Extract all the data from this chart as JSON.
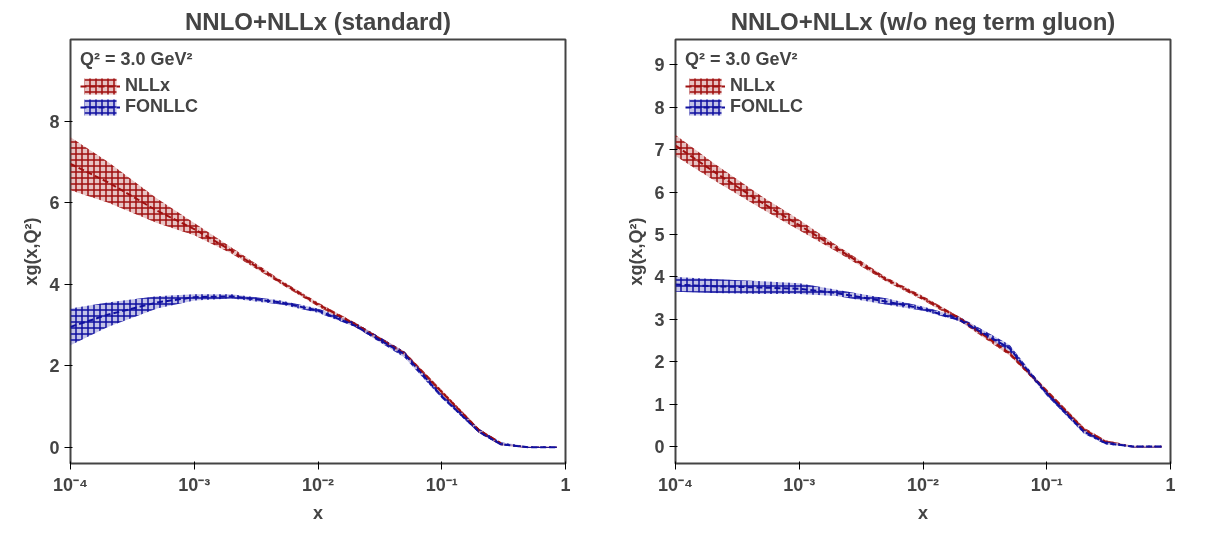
{
  "chart_data": [
    {
      "type": "line",
      "title": "NNLO+NLLx (standard)",
      "xlabel": "x",
      "ylabel": "xg(x,Q²)",
      "legend_title": "Q² = 3.0 GeV²",
      "log": "x",
      "grid": false,
      "legend": "top left",
      "x": [
        0.0001,
        0.0002,
        0.0005,
        0.001,
        0.002,
        0.005,
        0.01,
        0.02,
        0.05,
        0.1,
        0.2,
        0.3,
        0.5,
        0.85
      ],
      "xlim": [
        0.0001,
        1
      ],
      "xticks": [
        {
          "value": 0.0001,
          "label": "10⁻⁴"
        },
        {
          "value": 0.001,
          "label": "10⁻³"
        },
        {
          "value": 0.01,
          "label": "10⁻²"
        },
        {
          "value": 0.1,
          "label": "10⁻¹"
        },
        1
      ],
      "ylim": [
        -0.4,
        10
      ],
      "yticks": [
        0,
        2,
        4,
        6,
        8
      ],
      "series": [
        {
          "name": "NLLx",
          "color": "#a01010",
          "line_style": "dashed",
          "values": [
            6.95,
            6.5,
            5.8,
            5.35,
            4.82,
            4.05,
            3.5,
            3.02,
            2.3,
            1.35,
            0.42,
            0.1,
            null,
            null
          ],
          "lower": [
            6.3,
            6.0,
            5.5,
            5.2,
            4.75,
            4.0,
            3.45,
            2.95,
            2.25,
            1.3,
            0.35,
            0.05,
            -0.02,
            -0.02
          ],
          "upper": [
            7.6,
            7.0,
            6.1,
            5.5,
            4.9,
            4.1,
            3.55,
            3.05,
            2.35,
            1.4,
            0.45,
            0.1,
            0.02,
            0.02
          ]
        },
        {
          "name": "FONLLC",
          "color": "#1010a0",
          "line_style": "dashed",
          "values": [
            2.95,
            3.25,
            3.55,
            3.68,
            3.7,
            3.55,
            3.35,
            2.98,
            2.28,
            1.25,
            0.38,
            0.07,
            0.0,
            0.0
          ],
          "lower": [
            2.5,
            2.95,
            3.4,
            3.6,
            3.65,
            3.5,
            3.3,
            2.95,
            2.2,
            1.2,
            0.35,
            0.05,
            -0.02,
            -0.02
          ],
          "upper": [
            3.4,
            3.55,
            3.7,
            3.75,
            3.75,
            3.6,
            3.4,
            3.05,
            2.35,
            1.3,
            0.45,
            0.12,
            0.02,
            0.02
          ]
        }
      ]
    },
    {
      "type": "line",
      "title": "NNLO+NLLx (w/o neg term gluon)",
      "xlabel": "x",
      "ylabel": "xg(x,Q²)",
      "legend_title": "Q² = 3.0 GeV²",
      "log": "x",
      "grid": false,
      "legend": "top left",
      "x": [
        0.0001,
        0.0002,
        0.0005,
        0.001,
        0.002,
        0.005,
        0.01,
        0.02,
        0.05,
        0.1,
        0.2,
        0.3,
        0.5,
        0.85
      ],
      "xlim": [
        0.0001,
        1
      ],
      "xticks": [
        {
          "value": 0.0001,
          "label": "10⁻⁴"
        },
        {
          "value": 0.001,
          "label": "10⁻³"
        },
        {
          "value": 0.01,
          "label": "10⁻²"
        },
        {
          "value": 0.1,
          "label": "10⁻¹"
        },
        1
      ],
      "ylim": [
        -0.4,
        9.6
      ],
      "yticks": [
        0,
        1,
        2,
        3,
        4,
        5,
        6,
        7,
        8,
        9
      ],
      "series": [
        {
          "name": "NLLx",
          "color": "#a01010",
          "line_style": "dashed",
          "values": [
            7.1,
            6.5,
            5.75,
            5.22,
            4.68,
            3.95,
            3.5,
            3.02,
            2.2,
            1.3,
            0.4,
            0.11,
            null,
            null
          ],
          "lower": [
            6.85,
            6.3,
            5.6,
            5.1,
            4.6,
            3.9,
            3.45,
            2.95,
            2.15,
            1.25,
            0.35,
            0.08,
            -0.02,
            -0.02
          ],
          "upper": [
            7.35,
            6.7,
            5.9,
            5.35,
            4.75,
            4.0,
            3.55,
            3.05,
            2.25,
            1.35,
            0.45,
            0.15,
            0.02,
            0.02
          ]
        },
        {
          "name": "FONLLC",
          "color": "#1010a0",
          "line_style": "dashed",
          "values": [
            3.82,
            3.78,
            3.75,
            3.72,
            3.62,
            3.42,
            3.25,
            2.98,
            2.32,
            1.25,
            0.35,
            0.08,
            0.0,
            0.0
          ],
          "lower": [
            3.65,
            3.62,
            3.6,
            3.6,
            3.55,
            3.35,
            3.2,
            2.95,
            2.25,
            1.2,
            0.3,
            0.05,
            -0.02,
            -0.02
          ],
          "upper": [
            4.0,
            3.95,
            3.9,
            3.85,
            3.7,
            3.5,
            3.3,
            3.05,
            2.4,
            1.3,
            0.4,
            0.12,
            0.02,
            0.02
          ]
        }
      ]
    }
  ]
}
